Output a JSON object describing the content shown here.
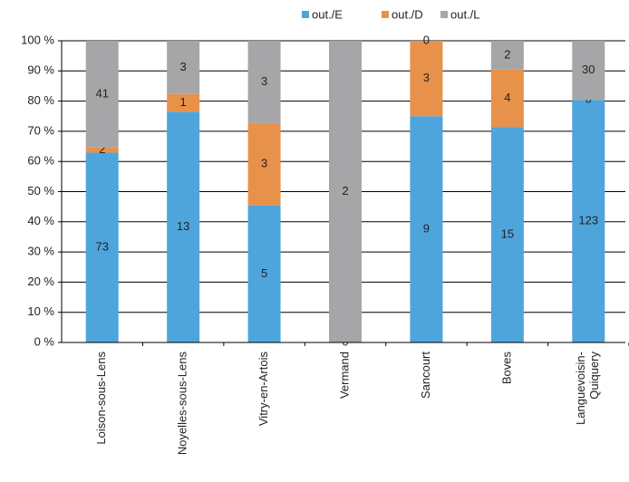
{
  "chart_data": {
    "type": "bar",
    "stacking": "percent",
    "categories": [
      "Loison-sous-Lens",
      "Noyelles-sous-Lens",
      "Vitry-en-Artois",
      "Vermand",
      "Sancourt",
      "Boves",
      "Languevoisin-\nQuiquery"
    ],
    "series": [
      {
        "name": "out./E",
        "color": "#4ea5dc",
        "values": [
          73,
          13,
          5,
          0,
          9,
          15,
          123
        ]
      },
      {
        "name": "out./D",
        "color": "#e8914b",
        "values": [
          2,
          1,
          3,
          null,
          3,
          4,
          0
        ]
      },
      {
        "name": "out./L",
        "color": "#a6a6a8",
        "values": [
          41,
          3,
          3,
          2,
          0,
          2,
          30
        ]
      }
    ],
    "ylim": [
      0,
      100
    ],
    "yticks": [
      {
        "value": 0,
        "label": "0 %"
      },
      {
        "value": 10,
        "label": "10 %"
      },
      {
        "value": 20,
        "label": "20 %"
      },
      {
        "value": 30,
        "label": "30 %"
      },
      {
        "value": 40,
        "label": "40 %"
      },
      {
        "value": 50,
        "label": "50 %"
      },
      {
        "value": 60,
        "label": "60 %"
      },
      {
        "value": 70,
        "label": "70 %"
      },
      {
        "value": 80,
        "label": "80 %"
      },
      {
        "value": 90,
        "label": "90 %"
      },
      {
        "value": 100,
        "label": "100 %"
      }
    ],
    "grid": true,
    "legend": "top"
  }
}
